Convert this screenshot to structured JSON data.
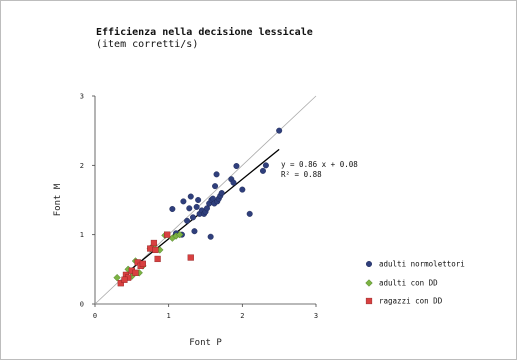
{
  "chart_data": {
    "type": "scatter",
    "title": "Efficienza nella decisione lessicale",
    "subtitle": "(item corretti/s)",
    "xlabel": "Font P",
    "ylabel": "Font M",
    "xlim": [
      0,
      3
    ],
    "ylim": [
      0,
      3
    ],
    "xticks": [
      "0",
      "1",
      "2",
      "3"
    ],
    "yticks": [
      "0",
      "1",
      "2",
      "3"
    ],
    "grid": false,
    "legend_position": "right",
    "trendline": {
      "equation": "y = 0.86 x + 0.08",
      "r2": "R² = 0.88",
      "slope": 0.86,
      "intercept": 0.08,
      "x_range": [
        0.45,
        2.5
      ],
      "color": "#000000"
    },
    "reference_line": {
      "type": "identity",
      "x_range": [
        0,
        3
      ],
      "color": "#aaaaaa"
    },
    "series": [
      {
        "name": "adulti normolettori",
        "marker": "circle",
        "color": "#2f3f7c",
        "points": [
          [
            1.05,
            1.37
          ],
          [
            1.2,
            1.48
          ],
          [
            1.28,
            1.38
          ],
          [
            1.33,
            1.25
          ],
          [
            1.35,
            1.05
          ],
          [
            1.38,
            1.4
          ],
          [
            1.4,
            1.5
          ],
          [
            1.42,
            1.3
          ],
          [
            1.45,
            1.35
          ],
          [
            1.48,
            1.3
          ],
          [
            1.5,
            1.33
          ],
          [
            1.52,
            1.38
          ],
          [
            1.55,
            1.45
          ],
          [
            1.57,
            0.97
          ],
          [
            1.58,
            1.5
          ],
          [
            1.6,
            1.52
          ],
          [
            1.62,
            1.45
          ],
          [
            1.63,
            1.7
          ],
          [
            1.65,
            1.87
          ],
          [
            1.66,
            1.48
          ],
          [
            1.68,
            1.52
          ],
          [
            1.7,
            1.56
          ],
          [
            1.72,
            1.6
          ],
          [
            1.85,
            1.8
          ],
          [
            1.88,
            1.75
          ],
          [
            1.92,
            1.99
          ],
          [
            2.0,
            1.65
          ],
          [
            2.1,
            1.3
          ],
          [
            2.28,
            1.92
          ],
          [
            2.32,
            2.0
          ],
          [
            2.5,
            2.5
          ],
          [
            1.3,
            1.55
          ],
          [
            1.25,
            1.2
          ],
          [
            1.18,
            1.0
          ],
          [
            1.1,
            1.02
          ]
        ]
      },
      {
        "name": "adulti con DD",
        "marker": "diamond",
        "color": "#7cb342",
        "points": [
          [
            0.3,
            0.38
          ],
          [
            0.45,
            0.5
          ],
          [
            0.55,
            0.62
          ],
          [
            0.6,
            0.45
          ],
          [
            0.75,
            0.8
          ],
          [
            0.8,
            0.85
          ],
          [
            0.95,
            0.99
          ],
          [
            1.05,
            0.95
          ],
          [
            1.1,
            0.98
          ],
          [
            1.15,
            1.0
          ],
          [
            0.88,
            0.78
          ],
          [
            0.5,
            0.4
          ],
          [
            0.65,
            0.55
          ]
        ]
      },
      {
        "name": "ragazzi con DD",
        "marker": "square",
        "color": "#d84040",
        "points": [
          [
            0.35,
            0.3
          ],
          [
            0.42,
            0.42
          ],
          [
            0.45,
            0.38
          ],
          [
            0.5,
            0.48
          ],
          [
            0.55,
            0.45
          ],
          [
            0.58,
            0.6
          ],
          [
            0.62,
            0.55
          ],
          [
            0.65,
            0.58
          ],
          [
            0.75,
            0.8
          ],
          [
            0.8,
            0.88
          ],
          [
            0.82,
            0.78
          ],
          [
            0.85,
            0.65
          ],
          [
            0.98,
            1.0
          ],
          [
            1.3,
            0.67
          ],
          [
            0.4,
            0.35
          ]
        ]
      }
    ]
  }
}
